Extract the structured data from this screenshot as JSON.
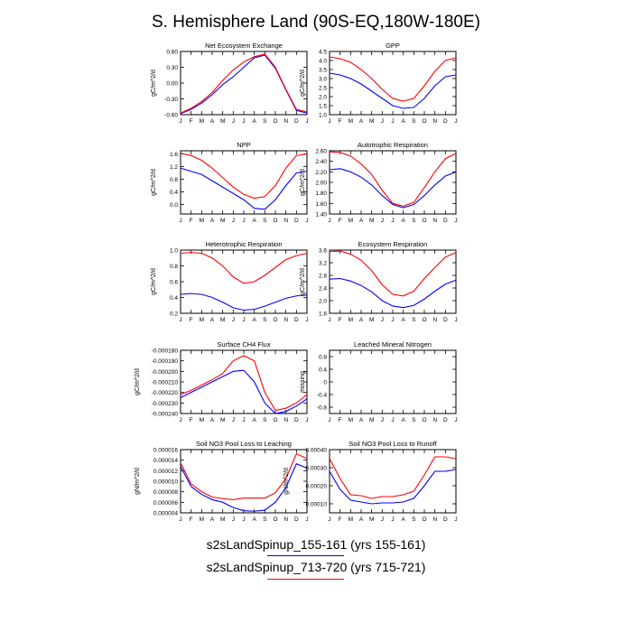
{
  "title": "S. Hemisphere Land (90S-EQ,180W-180E)",
  "colors": {
    "series1": "#0000ff",
    "series2": "#ff0000",
    "axis": "#000000"
  },
  "legend": [
    {
      "label": "s2sLandSpinup_155-161 (yrs 155-161)",
      "color": "#0000ff"
    },
    {
      "label": "s2sLandSpinup_713-720 (yrs 715-721)",
      "color": "#ff0000"
    }
  ],
  "chart_data": [
    {
      "type": "line",
      "title": "Net Ecosystem Exchange",
      "ylabel": "gC/m^2/d",
      "xlabel": "",
      "categories": [
        "J",
        "F",
        "M",
        "A",
        "M",
        "J",
        "J",
        "A",
        "S",
        "O",
        "N",
        "D",
        "J"
      ],
      "ylim": [
        -0.6,
        0.6
      ],
      "yticks": [
        "-0.60",
        "-0.30",
        "0.00",
        "0.30",
        "0.60"
      ],
      "ytick_values": [
        -0.6,
        -0.3,
        0.0,
        0.3,
        0.6
      ],
      "series": [
        {
          "name": "s2sLandSpinup_155-161",
          "color": "#0000ff",
          "values": [
            -0.58,
            -0.5,
            -0.38,
            -0.22,
            -0.03,
            0.12,
            0.3,
            0.48,
            0.53,
            0.28,
            -0.13,
            -0.52,
            -0.57
          ]
        },
        {
          "name": "s2sLandSpinup_713-720",
          "color": "#ff0000",
          "values": [
            -0.57,
            -0.48,
            -0.35,
            -0.18,
            0.05,
            0.25,
            0.4,
            0.5,
            0.55,
            0.3,
            -0.12,
            -0.5,
            -0.55
          ]
        }
      ]
    },
    {
      "type": "line",
      "title": "GPP",
      "ylabel": "gC/m^2/d",
      "xlabel": "",
      "categories": [
        "J",
        "F",
        "M",
        "A",
        "M",
        "J",
        "J",
        "A",
        "S",
        "O",
        "N",
        "D",
        "J"
      ],
      "ylim": [
        1.0,
        4.5
      ],
      "yticks": [
        "1.0",
        "1.5",
        "2.0",
        "2.5",
        "3.0",
        "3.5",
        "4.0",
        "4.5"
      ],
      "ytick_values": [
        1.0,
        1.5,
        2.0,
        2.5,
        3.0,
        3.5,
        4.0,
        4.5
      ],
      "series": [
        {
          "name": "s2sLandSpinup_155-161",
          "color": "#0000ff",
          "values": [
            3.3,
            3.2,
            3.0,
            2.7,
            2.3,
            1.9,
            1.5,
            1.35,
            1.4,
            1.9,
            2.6,
            3.1,
            3.2
          ]
        },
        {
          "name": "s2sLandSpinup_713-720",
          "color": "#ff0000",
          "values": [
            4.2,
            4.1,
            3.9,
            3.5,
            3.0,
            2.4,
            1.9,
            1.75,
            1.9,
            2.6,
            3.4,
            4.0,
            4.15
          ]
        }
      ]
    },
    {
      "type": "line",
      "title": "NPP",
      "ylabel": "gC/m^2/d",
      "xlabel": "",
      "categories": [
        "J",
        "F",
        "M",
        "A",
        "M",
        "J",
        "J",
        "A",
        "S",
        "O",
        "N",
        "D",
        "J"
      ],
      "ylim": [
        -0.3,
        1.7
      ],
      "yticks": [
        "0.0",
        "0.4",
        "0.8",
        "1.2",
        "1.6"
      ],
      "ytick_values": [
        0.0,
        0.4,
        0.8,
        1.2,
        1.6
      ],
      "series": [
        {
          "name": "s2sLandSpinup_155-161",
          "color": "#0000ff",
          "values": [
            1.15,
            1.05,
            0.95,
            0.75,
            0.55,
            0.35,
            0.15,
            -0.12,
            -0.15,
            0.15,
            0.6,
            1.0,
            1.05
          ]
        },
        {
          "name": "s2sLandSpinup_713-720",
          "color": "#ff0000",
          "values": [
            1.62,
            1.55,
            1.4,
            1.15,
            0.85,
            0.55,
            0.32,
            0.2,
            0.25,
            0.6,
            1.15,
            1.55,
            1.6
          ]
        }
      ]
    },
    {
      "type": "line",
      "title": "Autotrophic Respiration",
      "ylabel": "gC/m^2/d",
      "xlabel": "",
      "categories": [
        "J",
        "F",
        "M",
        "A",
        "M",
        "J",
        "J",
        "A",
        "S",
        "O",
        "N",
        "D",
        "J"
      ],
      "ylim": [
        1.4,
        2.6
      ],
      "yticks": [
        "1.40",
        "1.60",
        "1.80",
        "2.00",
        "2.20",
        "2.40",
        "2.60"
      ],
      "ytick_values": [
        1.4,
        1.6,
        1.8,
        2.0,
        2.2,
        2.4,
        2.6
      ],
      "series": [
        {
          "name": "s2sLandSpinup_155-161",
          "color": "#0000ff",
          "values": [
            2.24,
            2.26,
            2.2,
            2.1,
            1.95,
            1.75,
            1.58,
            1.52,
            1.58,
            1.75,
            1.95,
            2.12,
            2.2
          ]
        },
        {
          "name": "s2sLandSpinup_713-720",
          "color": "#ff0000",
          "values": [
            2.58,
            2.57,
            2.5,
            2.35,
            2.15,
            1.85,
            1.6,
            1.55,
            1.62,
            1.9,
            2.2,
            2.45,
            2.55
          ]
        }
      ]
    },
    {
      "type": "line",
      "title": "Heterotrophic Respiration",
      "ylabel": "gC/m^2/d",
      "xlabel": "",
      "categories": [
        "J",
        "F",
        "M",
        "A",
        "M",
        "J",
        "J",
        "A",
        "S",
        "O",
        "N",
        "D",
        "J"
      ],
      "ylim": [
        0.2,
        1.0
      ],
      "yticks": [
        "0.2",
        "0.4",
        "0.6",
        "0.8",
        "1.0"
      ],
      "ytick_values": [
        0.2,
        0.4,
        0.6,
        0.8,
        1.0
      ],
      "series": [
        {
          "name": "s2sLandSpinup_155-161",
          "color": "#0000ff",
          "values": [
            0.44,
            0.45,
            0.44,
            0.4,
            0.34,
            0.27,
            0.24,
            0.25,
            0.29,
            0.34,
            0.39,
            0.42,
            0.43
          ]
        },
        {
          "name": "s2sLandSpinup_713-720",
          "color": "#ff0000",
          "values": [
            0.96,
            0.97,
            0.96,
            0.9,
            0.8,
            0.66,
            0.58,
            0.6,
            0.68,
            0.78,
            0.88,
            0.93,
            0.96
          ]
        }
      ]
    },
    {
      "type": "line",
      "title": "Ecosystem Respiration",
      "ylabel": "gC/m^2/d",
      "xlabel": "",
      "categories": [
        "J",
        "F",
        "M",
        "A",
        "M",
        "J",
        "J",
        "A",
        "S",
        "O",
        "N",
        "D",
        "J"
      ],
      "ylim": [
        1.6,
        3.6
      ],
      "yticks": [
        "1.6",
        "2.0",
        "2.4",
        "2.8",
        "3.2",
        "3.6"
      ],
      "ytick_values": [
        1.6,
        2.0,
        2.4,
        2.8,
        3.2,
        3.6
      ],
      "series": [
        {
          "name": "s2sLandSpinup_155-161",
          "color": "#0000ff",
          "values": [
            2.68,
            2.7,
            2.62,
            2.48,
            2.28,
            2.0,
            1.83,
            1.78,
            1.85,
            2.05,
            2.3,
            2.52,
            2.65
          ]
        },
        {
          "name": "s2sLandSpinup_713-720",
          "color": "#ff0000",
          "values": [
            3.55,
            3.57,
            3.47,
            3.28,
            2.95,
            2.5,
            2.2,
            2.15,
            2.3,
            2.7,
            3.05,
            3.38,
            3.52
          ]
        }
      ]
    },
    {
      "type": "line",
      "title": "Surface CH4 Flux",
      "ylabel": "gC/m^2/d",
      "xlabel": "",
      "categories": [
        "J",
        "F",
        "M",
        "A",
        "M",
        "J",
        "J",
        "A",
        "S",
        "O",
        "N",
        "D",
        "J"
      ],
      "ylim": [
        -0.00024,
        -0.00018
      ],
      "yticks": [
        "-0.000240",
        "-0.000230",
        "-0.000220",
        "-0.000210",
        "-0.000200",
        "-0.000190",
        "-0.000180"
      ],
      "ytick_values": [
        -0.00024,
        -0.00023,
        -0.00022,
        -0.00021,
        -0.0002,
        -0.00019,
        -0.00018
      ],
      "series": [
        {
          "name": "s2sLandSpinup_155-161",
          "color": "#0000ff",
          "values": [
            -0.000225,
            -0.00022,
            -0.000215,
            -0.00021,
            -0.000205,
            -0.0002,
            -0.000199,
            -0.00021,
            -0.00023,
            -0.00024,
            -0.000238,
            -0.000233,
            -0.000226
          ]
        },
        {
          "name": "s2sLandSpinup_713-720",
          "color": "#ff0000",
          "values": [
            -0.000222,
            -0.000218,
            -0.000213,
            -0.000208,
            -0.000202,
            -0.00019,
            -0.000185,
            -0.00019,
            -0.00022,
            -0.000237,
            -0.000235,
            -0.00023,
            -0.000222
          ]
        }
      ]
    },
    {
      "type": "line",
      "title": "Leached Mineral Nitrogen",
      "ylabel": "missing",
      "xlabel": "",
      "categories": [
        "J",
        "F",
        "M",
        "A",
        "M",
        "J",
        "J",
        "A",
        "S",
        "O",
        "N",
        "D",
        "J"
      ],
      "ylim": [
        -1.0,
        1.0
      ],
      "yticks": [
        "-0.8",
        "-0.4",
        "0",
        "0.4",
        "0.8"
      ],
      "ytick_values": [
        -0.8,
        -0.4,
        0.0,
        0.4,
        0.8
      ],
      "series": []
    },
    {
      "type": "line",
      "title": "Soil NO3 Pool Loss to Leaching",
      "ylabel": "gN/m^2/d",
      "xlabel": "",
      "categories": [
        "J",
        "F",
        "M",
        "A",
        "M",
        "J",
        "J",
        "A",
        "S",
        "O",
        "N",
        "D",
        "J"
      ],
      "ylim": [
        4e-06,
        1.6e-05
      ],
      "yticks": [
        "0.000004",
        "0.000006",
        "0.000008",
        "0.000010",
        "0.000012",
        "0.000014",
        "0.000016"
      ],
      "ytick_values": [
        4e-06,
        6e-06,
        8e-06,
        1e-05,
        1.2e-05,
        1.4e-05,
        1.6e-05
      ],
      "series": [
        {
          "name": "s2sLandSpinup_155-161",
          "color": "#0000ff",
          "values": [
            1.28e-05,
            9e-06,
            7.5e-06,
            6.5e-06,
            6e-06,
            5e-06,
            4.4e-06,
            4.3e-06,
            4.5e-06,
            6e-06,
            8.8e-06,
            1.33e-05,
            1.25e-05
          ]
        },
        {
          "name": "s2sLandSpinup_713-720",
          "color": "#ff0000",
          "values": [
            1.35e-05,
            9.5e-06,
            8e-06,
            7e-06,
            6.7e-06,
            6.5e-06,
            6.8e-06,
            6.8e-06,
            6.8e-06,
            7.8e-06,
            1.05e-05,
            1.52e-05,
            1.43e-05
          ]
        }
      ]
    },
    {
      "type": "line",
      "title": "Soil NO3 Pool Loss to Runoff",
      "ylabel": "gN/m^2/d",
      "xlabel": "",
      "categories": [
        "J",
        "F",
        "M",
        "A",
        "M",
        "J",
        "J",
        "A",
        "S",
        "O",
        "N",
        "D",
        "J"
      ],
      "ylim": [
        5e-05,
        0.0004
      ],
      "yticks": [
        "0.00010",
        "0.00020",
        "0.00030",
        "0.00040"
      ],
      "ytick_values": [
        0.0001,
        0.0002,
        0.0003,
        0.0004
      ],
      "series": [
        {
          "name": "s2sLandSpinup_155-161",
          "color": "#0000ff",
          "values": [
            0.00028,
            0.00018,
            0.00012,
            0.00011,
            0.0001,
            0.000105,
            0.000105,
            0.00011,
            0.00013,
            0.0002,
            0.00028,
            0.00028,
            0.00029
          ]
        },
        {
          "name": "s2sLandSpinup_713-720",
          "color": "#ff0000",
          "values": [
            0.00035,
            0.00024,
            0.00015,
            0.000145,
            0.00013,
            0.00014,
            0.00014,
            0.00015,
            0.00017,
            0.00026,
            0.00036,
            0.00036,
            0.00035
          ]
        }
      ]
    }
  ]
}
